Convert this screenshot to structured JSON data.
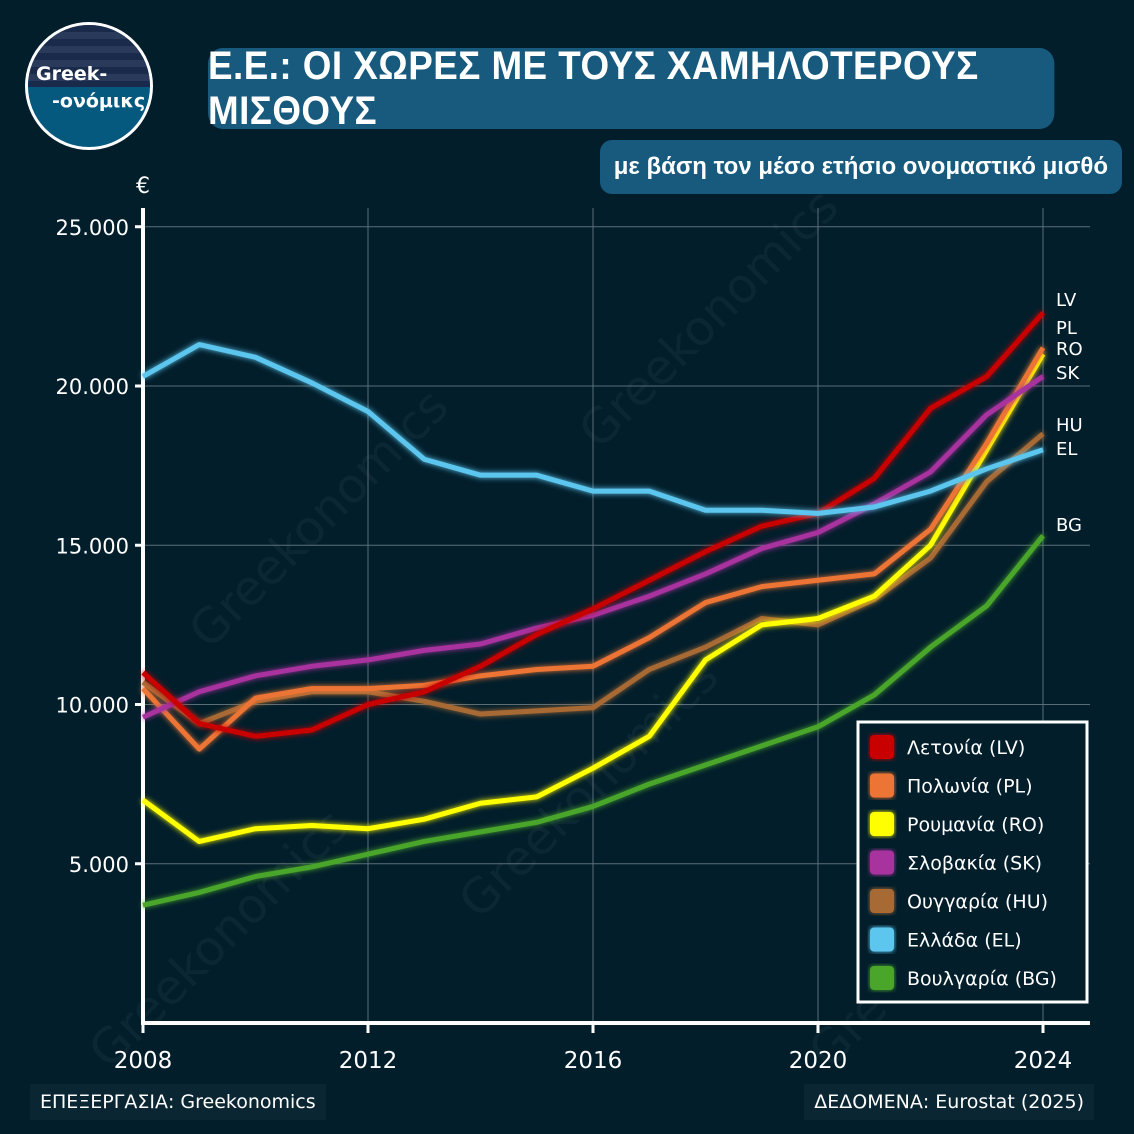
{
  "logo": {
    "line1": "Greek-",
    "line2": "-ονόμικς"
  },
  "header": {
    "title": "Ε.Ε.: ΟΙ ΧΩΡΕΣ ΜΕ ΤΟΥΣ ΧΑΜΗΛΟΤΕΡΟΥΣ ΜΙΣΘΟΥΣ",
    "subtitle": "με βάση τον μέσο ετήσιο ονομαστικό μισθό"
  },
  "footer": {
    "credit": "ΕΠΕΞΕΡΓΑΣΙΑ: Greekonomics",
    "source": "ΔΕΔΟΜΕΝΑ: Eurostat (2025)"
  },
  "watermark": "Greekonomics",
  "chart_data": {
    "type": "line",
    "ylabel": "€",
    "xlim": [
      2008,
      2024.8
    ],
    "ylim": [
      0,
      25500
    ],
    "x_ticks": [
      "2008",
      "2012",
      "2016",
      "2020",
      "2024"
    ],
    "y_ticks": [
      "5.000",
      "10.000",
      "15.000",
      "20.000",
      "25.000"
    ],
    "y_tick_values": [
      5000,
      10000,
      15000,
      20000,
      25000
    ],
    "grid": true,
    "legend_position": "bottom-right",
    "x": [
      2008,
      2009,
      2010,
      2011,
      2012,
      2013,
      2014,
      2015,
      2016,
      2017,
      2018,
      2019,
      2020,
      2021,
      2022,
      2023,
      2024
    ],
    "series": [
      {
        "name": "Λετονία (LV)",
        "code": "LV",
        "color": "#c80000",
        "values": [
          11000,
          9400,
          9000,
          9200,
          10000,
          10400,
          11200,
          12200,
          13000,
          13900,
          14800,
          15600,
          16000,
          17100,
          19300,
          20300,
          22300
        ]
      },
      {
        "name": "Πολωνία (PL)",
        "code": "PL",
        "color": "#ec7535",
        "values": [
          10500,
          8600,
          10200,
          10500,
          10500,
          10600,
          10900,
          11100,
          11200,
          12100,
          13200,
          13700,
          13900,
          14100,
          15500,
          18200,
          21200
        ]
      },
      {
        "name": "Ρουμανία (RO)",
        "code": "RO",
        "color": "#ffff00",
        "values": [
          7000,
          5700,
          6100,
          6200,
          6100,
          6400,
          6900,
          7100,
          8000,
          9000,
          11400,
          12500,
          12700,
          13400,
          15000,
          18000,
          21000
        ]
      },
      {
        "name": "Σλοβακία (SK)",
        "code": "SK",
        "color": "#a8309e",
        "values": [
          9600,
          10400,
          10900,
          11200,
          11400,
          11700,
          11900,
          12400,
          12800,
          13400,
          14100,
          14900,
          15400,
          16300,
          17300,
          19100,
          20300
        ]
      },
      {
        "name": "Ουγγαρία (HU)",
        "code": "HU",
        "color": "#a86a35",
        "values": [
          10700,
          9400,
          10100,
          10400,
          10400,
          10100,
          9700,
          9800,
          9900,
          11100,
          11800,
          12700,
          12500,
          13300,
          14600,
          17000,
          18500
        ]
      },
      {
        "name": "Ελλάδα (EL)",
        "code": "EL",
        "color": "#5bc6ee",
        "values": [
          20300,
          21300,
          20900,
          20100,
          19200,
          17700,
          17200,
          17200,
          16700,
          16700,
          16100,
          16100,
          16000,
          16200,
          16700,
          17400,
          18000
        ]
      },
      {
        "name": "Βουλγαρία (BG)",
        "code": "BG",
        "color": "#4aa62c",
        "values": [
          3700,
          4100,
          4600,
          4900,
          5300,
          5700,
          6000,
          6300,
          6800,
          7500,
          8100,
          8700,
          9300,
          10300,
          11800,
          13100,
          15300
        ]
      }
    ]
  }
}
